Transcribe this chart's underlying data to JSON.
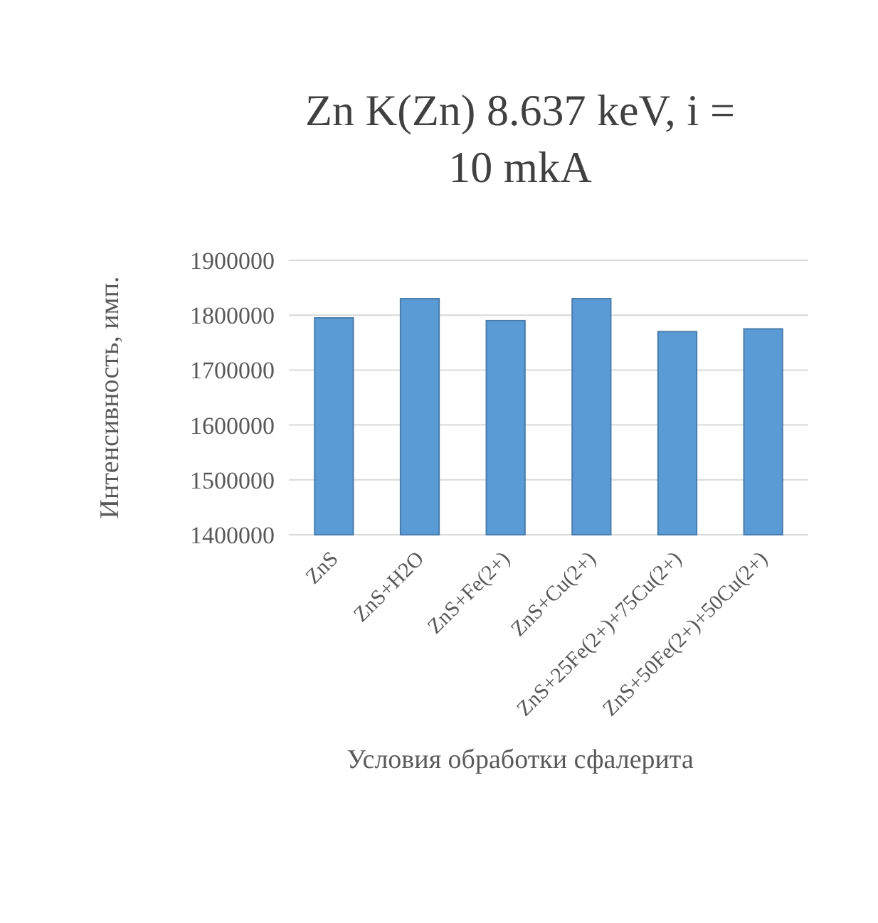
{
  "chart_data": {
    "type": "bar",
    "title": "Zn K(Zn) 8.637 keV, i = 10 mkA",
    "xlabel": "Условия обработки сфалерита",
    "ylabel": "Интенсивность, имп.",
    "categories": [
      "ZnS",
      "ZnS+H2O",
      "ZnS+Fe(2+)",
      "ZnS+Cu(2+)",
      "ZnS+25Fe(2+)+75Cu(2+)",
      "ZnS+50Fe(2+)+50Cu(2+)"
    ],
    "values": [
      1795000,
      1830000,
      1790000,
      1830000,
      1770000,
      1775000
    ],
    "color": "#5b9bd5",
    "ylim": [
      1400000,
      1900000
    ],
    "yticks": [
      1400000,
      1500000,
      1600000,
      1700000,
      1800000,
      1900000
    ],
    "grid": "y"
  }
}
